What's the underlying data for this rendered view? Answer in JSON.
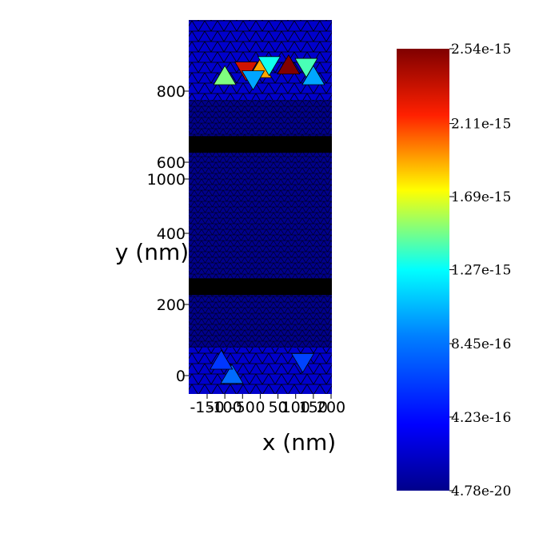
{
  "chart_data": {
    "type": "heatmap",
    "description_free": true,
    "xlabel": "x (nm)",
    "ylabel": "y (nm)",
    "xlim": [
      -200,
      200
    ],
    "ylim": [
      -50,
      1000
    ],
    "x_ticks": [
      "-150",
      "-100",
      "-50",
      "0",
      "50",
      "100",
      "150",
      "200"
    ],
    "y_ticks": [
      "0",
      "200",
      "400",
      "600",
      "800",
      "1000"
    ],
    "colorbar": {
      "min_label": "4.78e-20",
      "max_label": "2.54e-15",
      "tick_labels": [
        "2.54e-15",
        "2.11e-15",
        "1.69e-15",
        "1.27e-15",
        "8.45e-16",
        "4.23e-16",
        "4.78e-20"
      ],
      "tick_values": [
        2.54e-15,
        2.11e-15,
        1.69e-15,
        1.27e-15,
        8.45e-16,
        4.23e-16,
        4.78e-20
      ],
      "colormap": [
        "#00008b",
        "#0000ff",
        "#00ffff",
        "#ffff00",
        "#ff0000",
        "#800000"
      ]
    },
    "dense_mesh_bands_y": [
      {
        "y_from": 240,
        "y_to": 260
      },
      {
        "y_from": 640,
        "y_to": 660
      }
    ],
    "hotspots": [
      {
        "x": -100,
        "y": 840,
        "value": 1.5e-15
      },
      {
        "x": -40,
        "y": 860,
        "value": 2.3e-15
      },
      {
        "x": 0,
        "y": 860,
        "value": 1.9e-15
      },
      {
        "x": 25,
        "y": 875,
        "value": 1.3e-15
      },
      {
        "x": 80,
        "y": 870,
        "value": 2.54e-15
      },
      {
        "x": 130,
        "y": 870,
        "value": 1.4e-15
      },
      {
        "x": 150,
        "y": 840,
        "value": 1e-15
      },
      {
        "x": -20,
        "y": 835,
        "value": 1e-15
      },
      {
        "x": -80,
        "y": 0,
        "value": 8e-16
      },
      {
        "x": 120,
        "y": 40,
        "value": 6.5e-16
      },
      {
        "x": -110,
        "y": 40,
        "value": 6e-16
      }
    ]
  }
}
